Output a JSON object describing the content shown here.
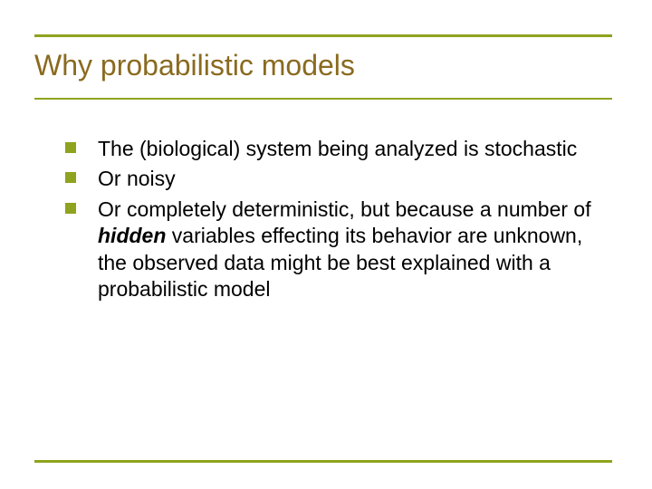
{
  "colors": {
    "accent": "#8fa31e",
    "title": "#8a6a1f",
    "rule": "#8fa31e",
    "text": "#000000",
    "background": "#ffffff"
  },
  "typography": {
    "title_fontsize": 32,
    "body_fontsize": 23,
    "body_lineheight": 1.28
  },
  "title": "Why probabilistic models",
  "bullets": [
    {
      "segments": [
        {
          "text": "The (biological) system being analyzed is stochastic",
          "style": "normal"
        }
      ]
    },
    {
      "segments": [
        {
          "text": "Or noisy",
          "style": "normal"
        }
      ]
    },
    {
      "segments": [
        {
          "text": "Or completely deterministic, but because a number of ",
          "style": "normal"
        },
        {
          "text": "hidden",
          "style": "bold-italic"
        },
        {
          "text": " variables effecting its behavior are unknown, the observed data might be best explained with a probabilistic model",
          "style": "normal"
        }
      ]
    }
  ]
}
